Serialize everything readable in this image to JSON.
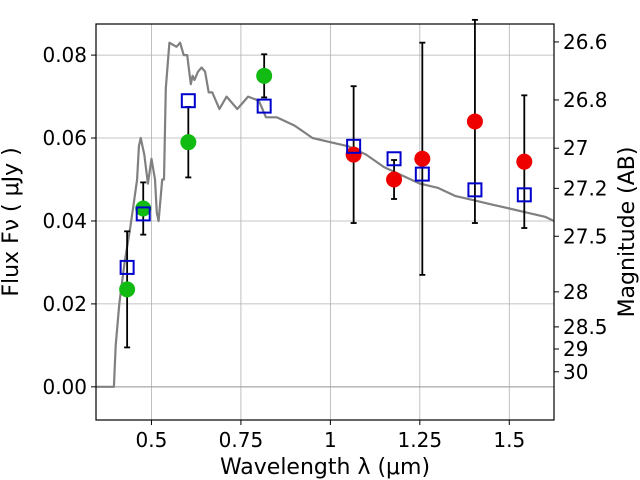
{
  "chart_data": {
    "type": "scatter",
    "xlabel": "Wavelength  λ (μm)",
    "ylabel": "Flux  Fν  ( μJy )",
    "y2label": "Magnitude (AB)",
    "xlim": [
      0.345,
      1.625
    ],
    "ylim": [
      -0.008,
      0.0875
    ],
    "x_ticks": [
      0.5,
      0.75,
      1,
      1.25,
      1.5
    ],
    "x_tick_labels": [
      "0.5",
      "0.75",
      "1",
      "1.25",
      "1.5"
    ],
    "y_ticks": [
      0.0,
      0.02,
      0.04,
      0.06,
      0.08
    ],
    "y_tick_labels": [
      "0.00",
      "0.02",
      "0.04",
      "0.06",
      "0.08"
    ],
    "y2_ticks": [
      26.6,
      26.8,
      27,
      27.2,
      27.5,
      28,
      28.5,
      29,
      30
    ],
    "y2_tick_labels": [
      "26.6",
      "26.8",
      "27",
      "27.2",
      "27.5",
      "28",
      "28.5",
      "29",
      "30"
    ],
    "grid": true,
    "colors": {
      "model": "#808080",
      "green": "#11bb11",
      "red": "#ee0000",
      "squares": "#0000cc",
      "errorbars": "#000000"
    },
    "model_sed": {
      "x": [
        0.345,
        0.395,
        0.4,
        0.41,
        0.425,
        0.44,
        0.45,
        0.46,
        0.465,
        0.47,
        0.48,
        0.49,
        0.5,
        0.51,
        0.515,
        0.52,
        0.53,
        0.535,
        0.54,
        0.55,
        0.57,
        0.58,
        0.59,
        0.6,
        0.61,
        0.615,
        0.62,
        0.63,
        0.64,
        0.65,
        0.66,
        0.67,
        0.69,
        0.71,
        0.74,
        0.77,
        0.8,
        0.82,
        0.85,
        0.9,
        0.95,
        1.0,
        1.05,
        1.1,
        1.15,
        1.2,
        1.25,
        1.3,
        1.35,
        1.4,
        1.45,
        1.5,
        1.55,
        1.6,
        1.625
      ],
      "y": [
        0.0,
        0.0,
        0.01,
        0.02,
        0.03,
        0.038,
        0.044,
        0.05,
        0.058,
        0.06,
        0.056,
        0.049,
        0.055,
        0.05,
        0.042,
        0.04,
        0.05,
        0.05,
        0.072,
        0.083,
        0.082,
        0.083,
        0.08,
        0.08,
        0.073,
        0.075,
        0.074,
        0.076,
        0.077,
        0.076,
        0.071,
        0.071,
        0.067,
        0.07,
        0.067,
        0.07,
        0.069,
        0.065,
        0.065,
        0.063,
        0.06,
        0.059,
        0.058,
        0.056,
        0.053,
        0.051,
        0.049,
        0.048,
        0.046,
        0.045,
        0.044,
        0.043,
        0.042,
        0.041,
        0.04
      ]
    },
    "series": [
      {
        "marker": "circle",
        "color": "green",
        "x": [
          0.432,
          0.477,
          0.603,
          0.815
        ],
        "y": [
          0.0235,
          0.043,
          0.059,
          0.075
        ]
      },
      {
        "marker": "circle",
        "color": "red",
        "x": [
          1.065,
          1.178,
          1.257,
          1.404,
          1.542
        ],
        "y": [
          0.056,
          0.05,
          0.055,
          0.064,
          0.0543
        ]
      },
      {
        "marker": "square",
        "color": "squares",
        "x": [
          0.432,
          0.477,
          0.603,
          0.815,
          1.065,
          1.178,
          1.257,
          1.404,
          1.542
        ],
        "y": [
          0.0288,
          0.0417,
          0.069,
          0.0677,
          0.058,
          0.055,
          0.0513,
          0.0475,
          0.0463
        ]
      }
    ],
    "errorbars": [
      {
        "x": 0.432,
        "y": 0.0235,
        "yerr": 0.014
      },
      {
        "x": 0.477,
        "y": 0.043,
        "yerr": 0.0063
      },
      {
        "x": 0.603,
        "y": 0.059,
        "yerr": 0.0085
      },
      {
        "x": 0.815,
        "y": 0.075,
        "yerr": 0.0052
      },
      {
        "x": 1.065,
        "y": 0.056,
        "yerr": 0.0165
      },
      {
        "x": 1.178,
        "y": 0.05,
        "yerr": 0.0047
      },
      {
        "x": 1.257,
        "y": 0.055,
        "yerr": 0.028
      },
      {
        "x": 1.404,
        "y": 0.064,
        "yerr": 0.0245
      },
      {
        "x": 1.542,
        "y": 0.0543,
        "yerr": 0.016
      }
    ]
  }
}
